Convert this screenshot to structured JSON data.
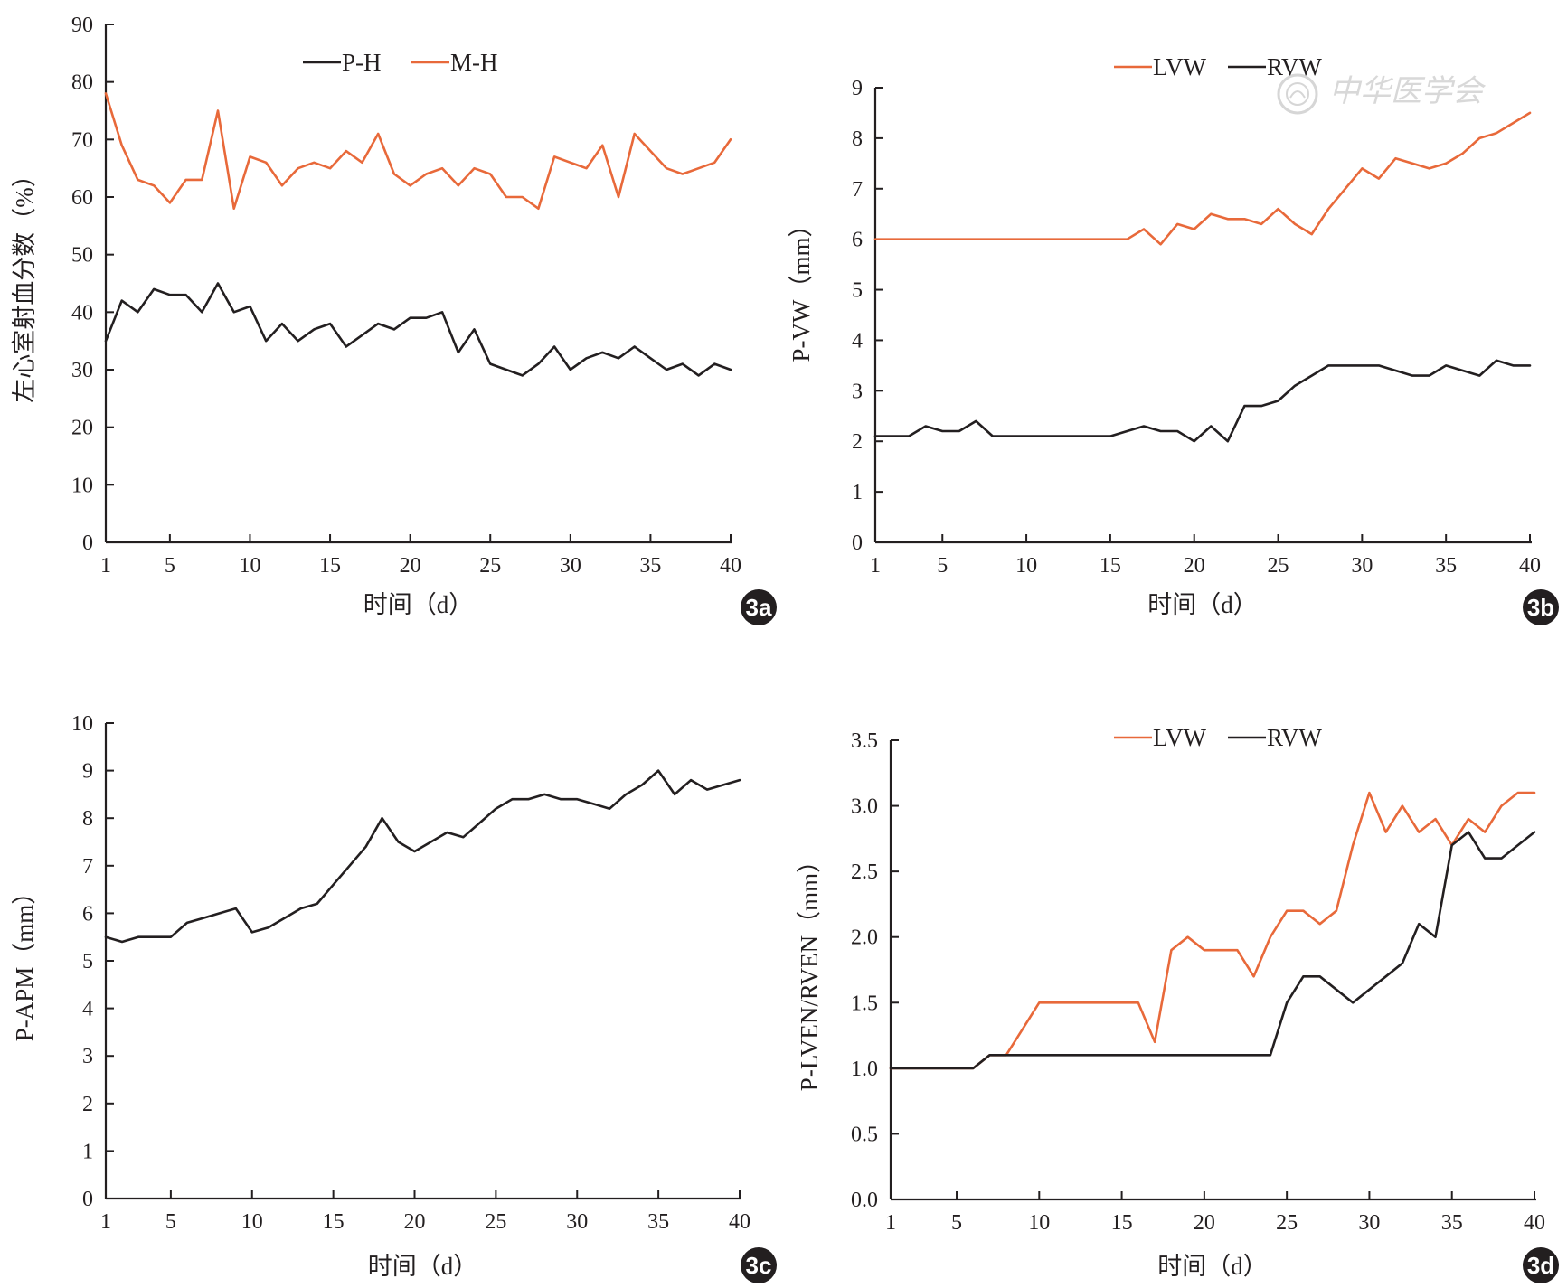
{
  "colors": {
    "black": "#231f20",
    "orange": "#e8693a",
    "badge": "#231f20",
    "watermark": "#d6d6d6"
  },
  "watermark": {
    "text": "中华医学会",
    "icon": "society-seal-icon"
  },
  "chart_data": [
    {
      "id": "3a",
      "type": "line",
      "badge": "3a",
      "xlabel": "时间（d）",
      "ylabel": "左心室射血分数（%）",
      "xlim": [
        1,
        40
      ],
      "ylim": [
        0,
        90
      ],
      "xticks": [
        1,
        5,
        10,
        15,
        20,
        25,
        30,
        35,
        40
      ],
      "yticks": [
        0,
        10,
        20,
        30,
        40,
        50,
        60,
        70,
        80,
        90
      ],
      "ytick_labels": [
        "0",
        "10",
        "20",
        "30",
        "40",
        "50",
        "60",
        "70",
        "80",
        "90"
      ],
      "legend": {
        "position": "top-center"
      },
      "series": [
        {
          "name": "P-H",
          "color": "#231f20",
          "values": [
            35,
            42,
            40,
            44,
            43,
            43,
            40,
            45,
            40,
            41,
            35,
            38,
            35,
            37,
            38,
            34,
            36,
            38,
            37,
            39,
            39,
            40,
            33,
            37,
            31,
            30,
            29,
            31,
            34,
            30,
            32,
            33,
            32,
            34,
            32,
            30,
            31,
            29,
            31,
            30
          ]
        },
        {
          "name": "M-H",
          "color": "#e8693a",
          "values": [
            78,
            69,
            63,
            62,
            59,
            63,
            63,
            75,
            58,
            67,
            66,
            62,
            65,
            66,
            65,
            68,
            66,
            71,
            64,
            62,
            64,
            65,
            62,
            65,
            64,
            60,
            60,
            58,
            67,
            66,
            65,
            69,
            60,
            71,
            68,
            65,
            64,
            65,
            66,
            70
          ]
        }
      ]
    },
    {
      "id": "3b",
      "type": "line",
      "badge": "3b",
      "xlabel": "时间（d）",
      "ylabel": "P-VW（mm）",
      "xlim": [
        1,
        40
      ],
      "ylim": [
        0,
        9
      ],
      "xticks": [
        1,
        5,
        10,
        15,
        20,
        25,
        30,
        35,
        40
      ],
      "yticks": [
        0,
        1,
        2,
        3,
        4,
        5,
        6,
        7,
        8,
        9
      ],
      "ytick_labels": [
        "0",
        "1",
        "2",
        "3",
        "4",
        "5",
        "6",
        "7",
        "8",
        "9"
      ],
      "legend": {
        "position": "top-right"
      },
      "series": [
        {
          "name": "LVW",
          "color": "#e8693a",
          "values": [
            6,
            6,
            6,
            6,
            6,
            6,
            6,
            6,
            6,
            6,
            6,
            6,
            6,
            6,
            6,
            6,
            6.2,
            5.9,
            6.3,
            6.2,
            6.5,
            6.4,
            6.4,
            6.3,
            6.6,
            6.3,
            6.1,
            6.6,
            7.0,
            7.4,
            7.2,
            7.6,
            7.5,
            7.4,
            7.5,
            7.7,
            8.0,
            8.1,
            8.3,
            8.5
          ]
        },
        {
          "name": "RVW",
          "color": "#231f20",
          "values": [
            2.1,
            2.1,
            2.1,
            2.3,
            2.2,
            2.2,
            2.4,
            2.1,
            2.1,
            2.1,
            2.1,
            2.1,
            2.1,
            2.1,
            2.1,
            2.2,
            2.3,
            2.2,
            2.2,
            2.0,
            2.3,
            2.0,
            2.7,
            2.7,
            2.8,
            3.1,
            3.3,
            3.5,
            3.5,
            3.5,
            3.5,
            3.4,
            3.3,
            3.3,
            3.5,
            3.4,
            3.3,
            3.6,
            3.5,
            3.5
          ]
        }
      ]
    },
    {
      "id": "3c",
      "type": "line",
      "badge": "3c",
      "xlabel": "时间（d）",
      "ylabel": "P-APM（mm）",
      "xlim": [
        1,
        40
      ],
      "ylim": [
        0,
        10
      ],
      "xticks": [
        1,
        5,
        10,
        15,
        20,
        25,
        30,
        35,
        40
      ],
      "yticks": [
        0,
        1,
        2,
        3,
        4,
        5,
        6,
        7,
        8,
        9,
        10
      ],
      "ytick_labels": [
        "0",
        "1",
        "2",
        "3",
        "4",
        "5",
        "6",
        "7",
        "8",
        "9",
        "10"
      ],
      "series": [
        {
          "name": "P-APM",
          "color": "#231f20",
          "values": [
            5.5,
            5.4,
            5.5,
            5.5,
            5.5,
            5.8,
            5.9,
            6.0,
            6.1,
            5.6,
            5.7,
            5.9,
            6.1,
            6.2,
            6.6,
            7.0,
            7.4,
            8.0,
            7.5,
            7.3,
            7.5,
            7.7,
            7.6,
            7.9,
            8.2,
            8.4,
            8.4,
            8.5,
            8.4,
            8.4,
            8.3,
            8.2,
            8.5,
            8.7,
            9.0,
            8.5,
            8.8,
            8.6,
            8.7,
            8.8
          ]
        }
      ]
    },
    {
      "id": "3d",
      "type": "line",
      "badge": "3d",
      "xlabel": "时间（d）",
      "ylabel": "P-LVEN/RVEN（mm）",
      "xlim": [
        1,
        40
      ],
      "ylim": [
        0,
        3.5
      ],
      "xticks": [
        1,
        5,
        10,
        15,
        20,
        25,
        30,
        35,
        40
      ],
      "yticks": [
        0,
        0.5,
        1,
        1.5,
        2,
        2.5,
        3,
        3.5
      ],
      "ytick_labels": [
        "0.0",
        "0.5",
        "1.0",
        "1.5",
        "2.0",
        "2.5",
        "3.0",
        "3.5"
      ],
      "legend": {
        "position": "top-center"
      },
      "series": [
        {
          "name": "LVW",
          "color": "#e8693a",
          "values": [
            1.0,
            1.0,
            1.0,
            1.0,
            1.0,
            1.0,
            1.1,
            1.1,
            1.3,
            1.5,
            1.5,
            1.5,
            1.5,
            1.5,
            1.5,
            1.5,
            1.2,
            1.9,
            2.0,
            1.9,
            1.9,
            1.9,
            1.7,
            2.0,
            2.2,
            2.2,
            2.1,
            2.2,
            2.7,
            3.1,
            2.8,
            3.0,
            2.8,
            2.9,
            2.7,
            2.9,
            2.8,
            3.0,
            3.1,
            3.1
          ]
        },
        {
          "name": "RVW",
          "color": "#231f20",
          "values": [
            1.0,
            1.0,
            1.0,
            1.0,
            1.0,
            1.0,
            1.1,
            1.1,
            1.1,
            1.1,
            1.1,
            1.1,
            1.1,
            1.1,
            1.1,
            1.1,
            1.1,
            1.1,
            1.1,
            1.1,
            1.1,
            1.1,
            1.1,
            1.1,
            1.5,
            1.7,
            1.7,
            1.6,
            1.5,
            1.6,
            1.7,
            1.8,
            2.1,
            2.0,
            2.7,
            2.8,
            2.6,
            2.6,
            2.7,
            2.8
          ]
        }
      ]
    }
  ]
}
